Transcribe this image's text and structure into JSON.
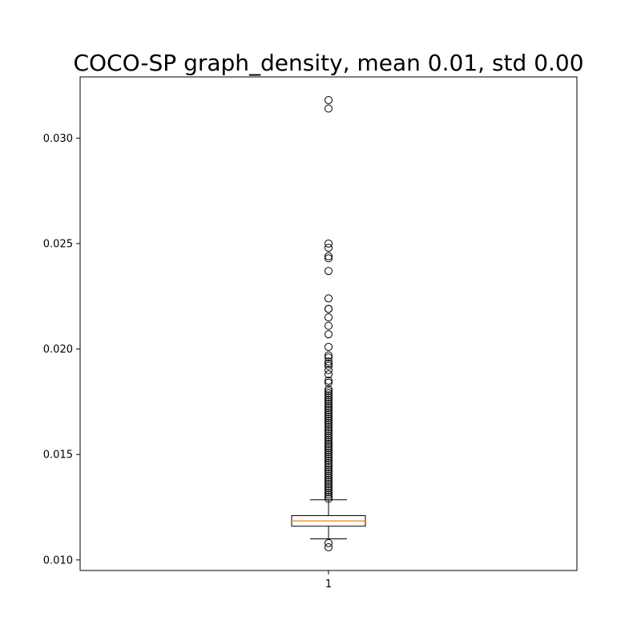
{
  "chart_data": {
    "type": "box",
    "title": "COCO-SP graph_density, mean 0.01, std 0.00",
    "xlabel": "",
    "ylabel": "",
    "categories": [
      "1"
    ],
    "yticks": [
      "0.010",
      "0.015",
      "0.020",
      "0.025",
      "0.030"
    ],
    "ylim": [
      0.0095,
      0.0329
    ],
    "grid": false,
    "box": {
      "whisker_low": 0.011,
      "q1": 0.0116,
      "median": 0.01185,
      "q3": 0.0121,
      "whisker_high": 0.01285
    },
    "outliers": [
      0.0318,
      0.0314,
      0.025,
      0.0248,
      0.0244,
      0.0243,
      0.0237,
      0.0224,
      0.0219,
      0.0219,
      0.0215,
      0.0211,
      0.0207,
      0.0201,
      0.0197,
      0.0196,
      0.0194,
      0.0193,
      0.0192,
      0.019,
      0.0188,
      0.0185,
      0.0184,
      0.0181,
      0.018,
      0.0179,
      0.0178,
      0.0177,
      0.0176,
      0.0175,
      0.0174,
      0.0173,
      0.0172,
      0.0171,
      0.017,
      0.0169,
      0.0168,
      0.0167,
      0.0166,
      0.0165,
      0.0164,
      0.0163,
      0.0162,
      0.0161,
      0.016,
      0.0159,
      0.0158,
      0.0157,
      0.0156,
      0.0155,
      0.0154,
      0.0153,
      0.0152,
      0.0151,
      0.015,
      0.0149,
      0.0148,
      0.0147,
      0.0146,
      0.0145,
      0.0144,
      0.0143,
      0.0142,
      0.0141,
      0.014,
      0.0139,
      0.0138,
      0.0137,
      0.0136,
      0.0135,
      0.0134,
      0.0133,
      0.0132,
      0.0131,
      0.013,
      0.0129,
      0.0108,
      0.0106
    ],
    "colors": {
      "median": "#ff7f0e",
      "box": "#000000"
    }
  }
}
